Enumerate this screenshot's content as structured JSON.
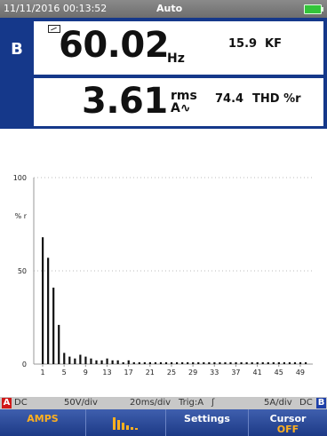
{
  "status": {
    "datetime": "11/11/2016 00:13:52",
    "mode": "Auto"
  },
  "channel": "B",
  "reading1": {
    "value": "60.02",
    "unit": "Hz",
    "side_value": "15.9",
    "side_label": "KF"
  },
  "reading2": {
    "value": "3.61",
    "unit_top": "rms",
    "unit_bottom": "A∿",
    "side_value": "74.4",
    "side_label": "THD %r"
  },
  "chart_data": {
    "type": "bar",
    "ylabel": "% r",
    "ylim": [
      0,
      100
    ],
    "yticks": [
      0,
      50,
      100
    ],
    "categories": [
      1,
      2,
      3,
      4,
      5,
      6,
      7,
      8,
      9,
      10,
      11,
      12,
      13,
      14,
      15,
      16,
      17,
      18,
      19,
      20,
      21,
      22,
      23,
      24,
      25,
      26,
      27,
      28,
      29,
      30,
      31,
      32,
      33,
      34,
      35,
      36,
      37,
      38,
      39,
      40,
      41,
      42,
      43,
      44,
      45,
      46,
      47,
      48,
      49,
      50
    ],
    "xtick_labels": [
      "1",
      "5",
      "9",
      "13",
      "17",
      "21",
      "25",
      "29",
      "33",
      "37",
      "41",
      "45",
      "49"
    ],
    "values": [
      68,
      57,
      41,
      21,
      6,
      4,
      3,
      5,
      4,
      3,
      2,
      2,
      3,
      2,
      2,
      1,
      2,
      1,
      1,
      1,
      1,
      1,
      1,
      1,
      1,
      1,
      1,
      1,
      1,
      1,
      1,
      1,
      1,
      1,
      1,
      1,
      1,
      1,
      1,
      1,
      1,
      1,
      1,
      1,
      1,
      1,
      1,
      1,
      1,
      1
    ],
    "grid": true
  },
  "info_bar": {
    "a_tag": "A",
    "a_coupling": "DC",
    "volts_div": "50V/div",
    "time_div": "20ms/div",
    "trig": "Trig:A",
    "trig_slope": "ʃ",
    "amps_div": "5A/div",
    "b_coupling": "DC",
    "b_tag": "B"
  },
  "softkeys": {
    "amps_label": "AMPS",
    "bars_icon": "harmonics-bars-icon",
    "settings_label": "Settings",
    "cursor_label": "Cursor",
    "cursor_state": "OFF"
  },
  "colors": {
    "frame_blue": "#15388a",
    "softkey_blue": "#1d3a86",
    "accent_orange": "#ffb020",
    "battery_green": "#33c43a",
    "tag_red": "#d01818"
  }
}
